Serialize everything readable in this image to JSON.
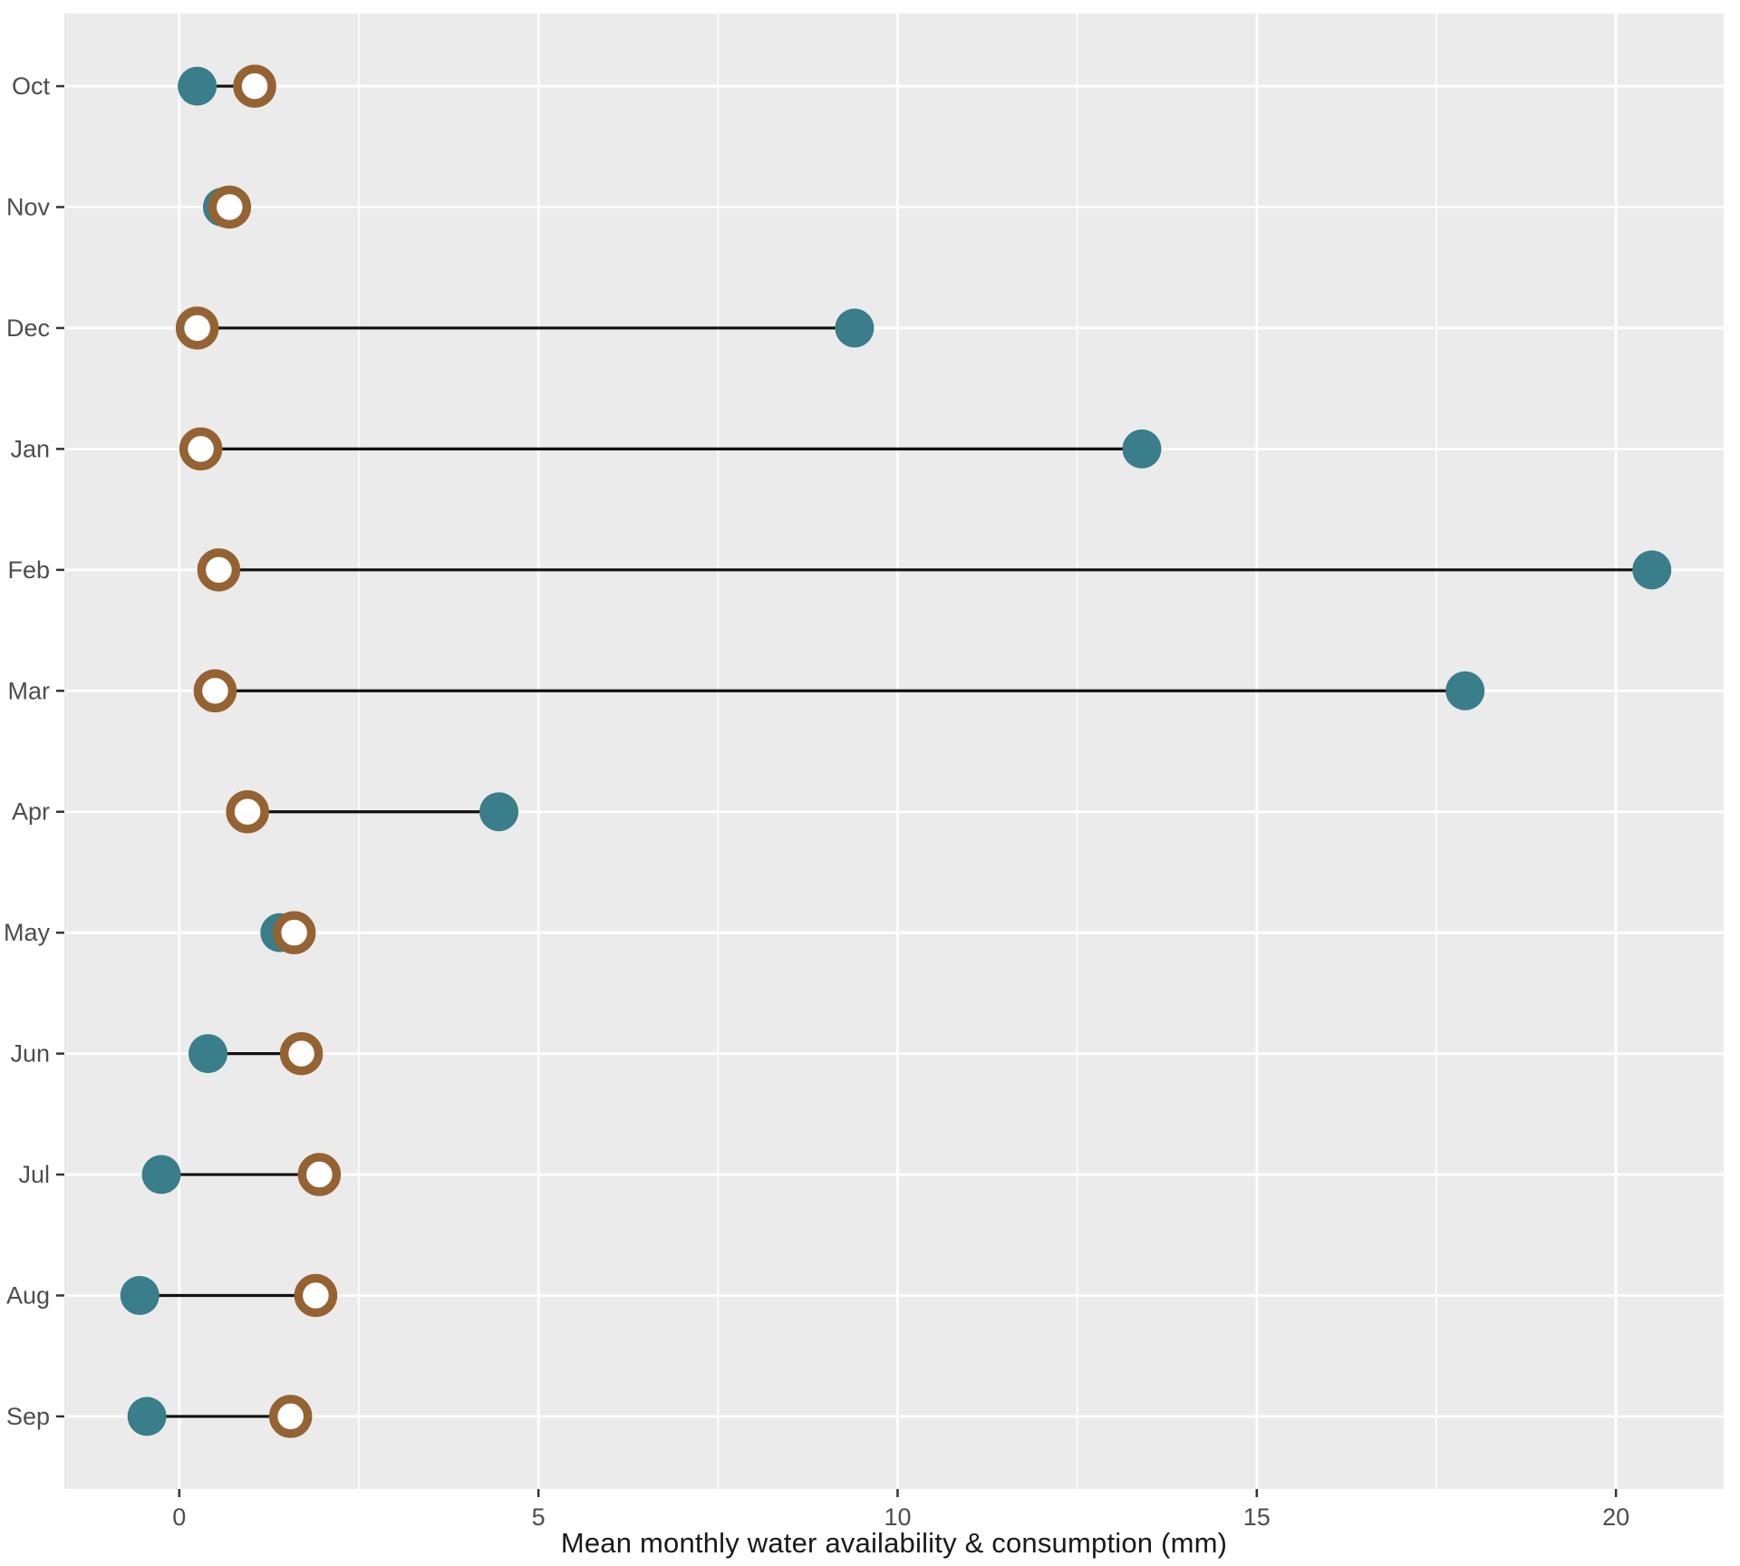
{
  "chart_data": {
    "type": "dumbbell",
    "title": "",
    "xlabel": "Mean monthly water availability & consumption (mm)",
    "ylabel": "",
    "categories": [
      "Oct",
      "Nov",
      "Dec",
      "Jan",
      "Feb",
      "Mar",
      "Apr",
      "May",
      "Jun",
      "Jul",
      "Aug",
      "Sep"
    ],
    "series": [
      {
        "name": "teal-filled-dot",
        "marker": "filled-circle",
        "color": "#3A7D8B",
        "values": [
          0.25,
          0.6,
          9.4,
          13.4,
          20.5,
          17.9,
          4.45,
          1.4,
          0.4,
          -0.25,
          -0.55,
          -0.45
        ]
      },
      {
        "name": "brown-open-circle",
        "marker": "open-circle",
        "color": "#946331",
        "values": [
          1.05,
          0.7,
          0.25,
          0.3,
          0.55,
          0.5,
          0.95,
          1.6,
          1.7,
          1.95,
          1.9,
          1.55
        ]
      }
    ],
    "connector_color": "#111111",
    "x_ticks": [
      0,
      5,
      10,
      15,
      20
    ],
    "x_tick_labels": [
      "0",
      "5",
      "10",
      "15",
      "20"
    ],
    "x_minor_ticks": [
      2.5,
      7.5,
      12.5,
      17.5
    ],
    "xlim": [
      -1.6,
      21.5
    ],
    "grid": "on",
    "legend": "none",
    "panel_background": "#EBEBEB",
    "grid_color": "#FFFFFF",
    "axis_text_color": "#4D4D4D",
    "tick_mark_color": "#333333"
  }
}
